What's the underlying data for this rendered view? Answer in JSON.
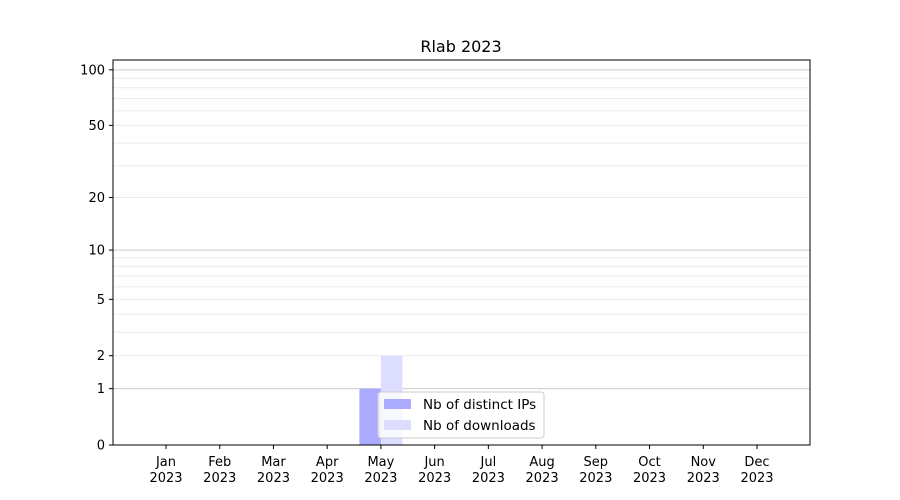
{
  "chart_data": {
    "type": "bar",
    "title": "Rlab 2023",
    "xlabel": "",
    "ylabel": "",
    "categories": [
      "Jan\n2023",
      "Feb\n2023",
      "Mar\n2023",
      "Apr\n2023",
      "May\n2023",
      "Jun\n2023",
      "Jul\n2023",
      "Aug\n2023",
      "Sep\n2023",
      "Oct\n2023",
      "Nov\n2023",
      "Dec\n2023"
    ],
    "yscale": "log(y+1)",
    "ylim": [
      0,
      113
    ],
    "yticks": [
      0,
      1,
      2,
      5,
      10,
      20,
      50,
      100
    ],
    "major_grid": [
      1,
      10,
      100
    ],
    "minor_grid": [
      2,
      3,
      4,
      5,
      6,
      7,
      8,
      9,
      20,
      30,
      40,
      50,
      60,
      70,
      80,
      90
    ],
    "grid": true,
    "legend": "bottom-center",
    "series": [
      {
        "name": "Nb of distinct IPs",
        "color": "#aaaaff",
        "values": [
          0,
          0,
          0,
          0,
          1,
          0,
          0,
          0,
          0,
          0,
          0,
          0
        ]
      },
      {
        "name": "Nb of downloads",
        "color": "#ddddff",
        "values": [
          0,
          0,
          0,
          0,
          2,
          0,
          0,
          0,
          0,
          0,
          0,
          0
        ]
      }
    ]
  }
}
